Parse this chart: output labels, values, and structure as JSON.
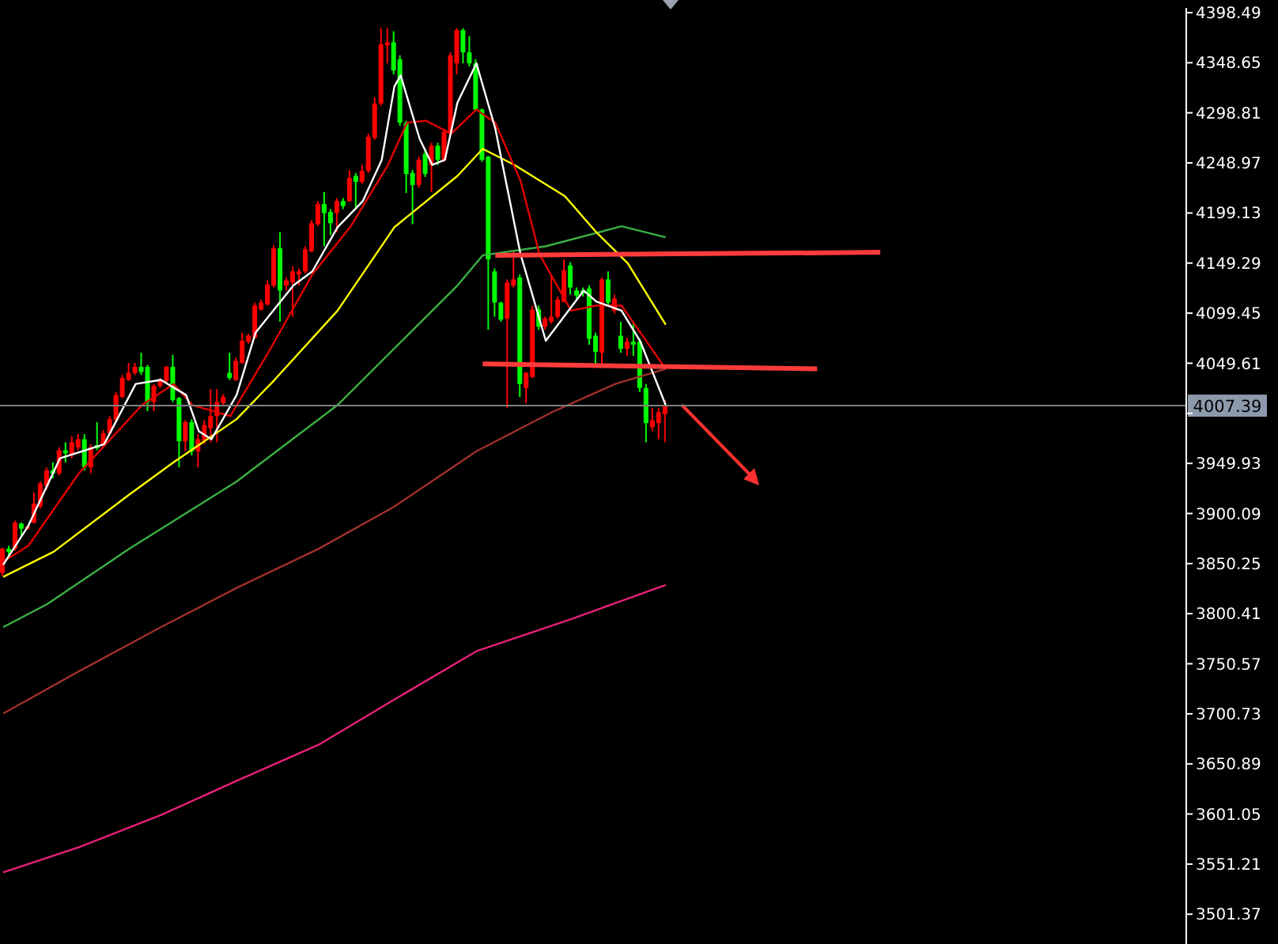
{
  "chart_data": {
    "type": "candlestick",
    "categories": [
      null,
      null,
      null,
      null,
      null,
      null,
      null,
      null,
      null,
      null,
      null,
      null,
      null,
      null,
      null,
      null,
      null,
      null,
      null,
      null,
      null,
      null,
      null,
      null,
      null,
      null,
      null,
      null,
      null,
      null,
      null,
      null,
      null,
      null,
      null,
      null,
      null,
      null,
      null,
      null,
      null,
      null,
      null,
      null,
      null,
      null,
      null,
      null,
      null,
      null,
      null,
      null,
      null,
      null,
      null,
      null,
      null,
      null,
      null,
      null,
      null,
      null,
      null,
      null,
      null,
      null,
      null,
      null,
      null,
      null,
      null,
      null,
      null,
      null,
      null,
      null,
      null,
      null,
      null,
      null,
      null,
      null,
      null,
      null,
      null,
      null,
      null,
      null,
      null,
      null,
      null,
      null,
      null,
      null,
      null,
      null,
      null,
      null,
      null,
      null,
      null,
      null,
      null,
      null,
      null,
      null,
      null,
      null,
      null,
      null,
      null,
      null,
      null,
      null,
      null,
      null,
      null,
      null,
      null,
      null,
      null,
      null,
      null,
      null,
      null,
      null,
      null,
      null,
      null,
      null,
      null,
      null,
      null,
      null,
      null,
      null,
      null,
      null,
      null,
      null,
      null,
      null,
      null,
      null,
      null,
      null,
      null,
      null,
      null,
      null,
      null,
      null,
      null,
      null,
      null,
      null,
      null,
      null,
      null,
      null,
      null,
      null,
      null,
      null,
      null,
      null,
      null,
      null,
      null,
      null,
      null,
      null,
      null,
      null,
      null,
      null,
      null,
      null,
      null,
      null,
      null,
      null,
      null,
      null,
      null,
      null,
      null,
      null
    ],
    "ohlc": [
      [
        3841,
        3866,
        3838,
        3865
      ],
      [
        3865,
        3868,
        3857,
        3862
      ],
      [
        3865,
        3893,
        3863,
        3891
      ],
      [
        3890,
        3891,
        3877,
        3885
      ],
      [
        3885,
        3888,
        3884,
        3887
      ],
      [
        3891,
        3921,
        3890,
        3910
      ],
      [
        3907,
        3932,
        3905,
        3930
      ],
      [
        3927,
        3946,
        3924,
        3943
      ],
      [
        3943,
        3951,
        3935,
        3940
      ],
      [
        3940,
        3966,
        3938,
        3963
      ],
      [
        3963,
        3971,
        3951,
        3960
      ],
      [
        3958,
        3977,
        3955,
        3971
      ],
      [
        3966,
        3979,
        3963,
        3974
      ],
      [
        3974,
        3979,
        3943,
        3946
      ],
      [
        3946,
        3969,
        3940,
        3966
      ],
      [
        3968,
        3991,
        3963,
        3965
      ],
      [
        3968,
        3983,
        3966,
        3980
      ],
      [
        3980,
        3997,
        3979,
        3994
      ],
      [
        3993,
        4021,
        3991,
        4018
      ],
      [
        4016,
        4038,
        4015,
        4035
      ],
      [
        4033,
        4050,
        4032,
        4040
      ],
      [
        4040,
        4050,
        4038,
        4046
      ],
      [
        4046,
        4060,
        4038,
        4041
      ],
      [
        4046,
        4048,
        4002,
        4011
      ],
      [
        4011,
        4029,
        4002,
        4027
      ],
      [
        4027,
        4035,
        4025,
        4033
      ],
      [
        4032,
        4047,
        4030,
        4046
      ],
      [
        4046,
        4058,
        4011,
        4013
      ],
      [
        4015,
        4016,
        3946,
        3972
      ],
      [
        3972,
        3993,
        3962,
        3991
      ],
      [
        3991,
        3994,
        3958,
        3962
      ],
      [
        3962,
        3979,
        3946,
        3974
      ],
      [
        3972,
        3993,
        3969,
        3988
      ],
      [
        3985,
        4024,
        3971,
        3997
      ],
      [
        3997,
        4024,
        3971,
        4011
      ],
      [
        4010,
        4019,
        4008,
        4016
      ],
      [
        4040,
        4060,
        4033,
        4035
      ],
      [
        4033,
        4055,
        4032,
        4052
      ],
      [
        4050,
        4080,
        4049,
        4072
      ],
      [
        4071,
        4079,
        4069,
        4077
      ],
      [
        4075,
        4110,
        4074,
        4107
      ],
      [
        4103,
        4113,
        4102,
        4110
      ],
      [
        4108,
        4132,
        4107,
        4128
      ],
      [
        4127,
        4167,
        4125,
        4164
      ],
      [
        4164,
        4180,
        4091,
        4122
      ],
      [
        4127,
        4135,
        4122,
        4132
      ],
      [
        4130,
        4146,
        4096,
        4141
      ],
      [
        4138,
        4144,
        4127,
        4141
      ],
      [
        4141,
        4166,
        4139,
        4163
      ],
      [
        4161,
        4192,
        4160,
        4189
      ],
      [
        4188,
        4211,
        4186,
        4208
      ],
      [
        4208,
        4220,
        4166,
        4199
      ],
      [
        4200,
        4203,
        4177,
        4189
      ],
      [
        4199,
        4214,
        4180,
        4211
      ],
      [
        4211,
        4214,
        4203,
        4206
      ],
      [
        4211,
        4242,
        4210,
        4234
      ],
      [
        4236,
        4239,
        4203,
        4230
      ],
      [
        4230,
        4247,
        4228,
        4241
      ],
      [
        4241,
        4278,
        4239,
        4275
      ],
      [
        4274,
        4314,
        4272,
        4308
      ],
      [
        4308,
        4383,
        4306,
        4367
      ],
      [
        4366,
        4383,
        4348,
        4369
      ],
      [
        4369,
        4380,
        4337,
        4341
      ],
      [
        4352,
        4356,
        4286,
        4289
      ],
      [
        4289,
        4291,
        4219,
        4238
      ],
      [
        4239,
        4242,
        4188,
        4227
      ],
      [
        4227,
        4255,
        4224,
        4252
      ],
      [
        4258,
        4263,
        4235,
        4238
      ],
      [
        4247,
        4269,
        4220,
        4266
      ],
      [
        4266,
        4269,
        4247,
        4252
      ],
      [
        4252,
        4283,
        4250,
        4280
      ],
      [
        4278,
        4359,
        4275,
        4356
      ],
      [
        4348,
        4383,
        4337,
        4381
      ],
      [
        4381,
        4383,
        4348,
        4359
      ],
      [
        4359,
        4375,
        4345,
        4348
      ],
      [
        4348,
        4352,
        4300,
        4302
      ],
      [
        4302,
        4303,
        4250,
        4252
      ],
      [
        4255,
        4256,
        4083,
        4153
      ],
      [
        4141,
        4144,
        4096,
        4110
      ],
      [
        4110,
        4111,
        4091,
        4093
      ],
      [
        4094,
        4133,
        4005,
        4130
      ],
      [
        4127,
        4161,
        4125,
        4133
      ],
      [
        4135,
        4138,
        4016,
        4029
      ],
      [
        4025,
        4041,
        4010,
        4040
      ],
      [
        4036,
        4107,
        4035,
        4103
      ],
      [
        4103,
        4107,
        4083,
        4086
      ],
      [
        4086,
        4096,
        4083,
        4094
      ],
      [
        4091,
        4138,
        4089,
        4096
      ],
      [
        4096,
        4116,
        4094,
        4113
      ],
      [
        4111,
        4153,
        4110,
        4142
      ],
      [
        4147,
        4150,
        4118,
        4125
      ],
      [
        4122,
        4125,
        4114,
        4117
      ],
      [
        4122,
        4125,
        4116,
        4119
      ],
      [
        4124,
        4127,
        4068,
        4074
      ],
      [
        4077,
        4080,
        4046,
        4061
      ],
      [
        4060,
        4135,
        4046,
        4133
      ],
      [
        4133,
        4141,
        4107,
        4110
      ],
      [
        4102,
        4118,
        4099,
        4114
      ],
      [
        4077,
        4091,
        4060,
        4064
      ],
      [
        4064,
        4075,
        4057,
        4071
      ],
      [
        4071,
        4091,
        4057,
        4068
      ],
      [
        4071,
        4074,
        4021,
        4025
      ],
      [
        4025,
        4029,
        3971,
        3990
      ],
      [
        3986,
        4005,
        3982,
        3993
      ],
      [
        3990,
        4005,
        3974,
        4001
      ],
      [
        3999,
        4013,
        3971,
        4008
      ],
      null,
      null,
      null,
      null,
      null,
      null,
      null,
      null,
      null,
      null,
      null,
      null,
      null,
      null,
      null,
      null,
      null,
      null,
      null,
      null,
      null,
      null,
      null,
      null,
      null,
      null,
      null,
      null,
      null,
      null,
      null,
      null,
      null,
      null,
      null,
      null,
      null,
      null,
      null,
      null,
      null,
      null,
      null,
      null,
      null,
      null,
      null,
      null,
      null,
      null,
      null,
      null,
      null,
      null,
      null,
      null,
      null,
      null,
      null,
      null,
      null,
      null,
      null,
      null,
      null,
      null,
      null,
      null,
      null,
      null,
      null,
      null,
      null,
      null,
      null,
      null,
      null,
      null,
      null,
      null,
      null,
      null
    ],
    "colors": [
      "#ff0000",
      "#00ff00",
      "#ff0000",
      "#00ff00",
      "#ff0000",
      "#ff0000",
      "#ff0000",
      "#ff0000",
      "#00ff00",
      "#ff0000",
      "#00ff00",
      "#ff0000",
      "#ff0000",
      "#00ff00",
      "#ff0000",
      "#00ff00",
      "#ff0000",
      "#ff0000",
      "#ff0000",
      "#ff0000",
      "#ff0000",
      "#ff0000",
      "#00ff00",
      "#00ff00",
      "#ff0000",
      "#ff0000",
      "#ff0000",
      "#00ff00",
      "#00ff00",
      "#ff0000",
      "#00ff00",
      "#ff0000",
      "#ff0000",
      "#ff0000",
      "#ff0000",
      "#ff0000",
      "#00ff00",
      "#ff0000",
      "#ff0000",
      "#ff0000",
      "#ff0000",
      "#ff0000",
      "#ff0000",
      "#ff0000",
      "#00ff00",
      "#ff0000",
      "#ff0000",
      "#ff0000",
      "#ff0000",
      "#ff0000",
      "#ff0000",
      "#00ff00",
      "#00ff00",
      "#ff0000",
      "#00ff00",
      "#ff0000",
      "#00ff00",
      "#ff0000",
      "#ff0000",
      "#ff0000",
      "#ff0000",
      "#ff0000",
      "#00ff00",
      "#00ff00",
      "#00ff00",
      "#00ff00",
      "#ff0000",
      "#00ff00",
      "#ff0000",
      "#00ff00",
      "#ff0000",
      "#ff0000",
      "#ff0000",
      "#00ff00",
      "#00ff00",
      "#00ff00",
      "#00ff00",
      "#00ff00",
      "#00ff00",
      "#00ff00",
      "#ff0000",
      "#ff0000",
      "#00ff00",
      "#ff0000",
      "#ff0000",
      "#00ff00",
      "#ff0000",
      "#ff0000",
      "#ff0000",
      "#ff0000",
      "#00ff00",
      "#00ff00",
      "#00ff00",
      "#00ff00",
      "#00ff00",
      "#ff0000",
      "#00ff00",
      "#ff0000",
      "#00ff00",
      "#ff0000",
      "#00ff00",
      "#00ff00",
      "#00ff00",
      "#ff0000",
      "#ff0000",
      "#ff0000",
      null,
      null,
      null,
      null,
      null,
      null,
      null,
      null,
      null,
      null,
      null,
      null,
      null,
      null,
      null,
      null,
      null,
      null,
      null,
      null,
      null,
      null,
      null,
      null,
      null,
      null,
      null,
      null,
      null,
      null,
      null,
      null,
      null,
      null,
      null,
      null,
      null,
      null,
      null,
      null,
      null,
      null,
      null,
      null,
      null,
      null,
      null,
      null,
      null,
      null,
      null,
      null,
      null,
      null,
      null,
      null,
      null,
      null,
      null,
      null,
      null,
      null,
      null,
      null,
      null,
      null,
      null,
      null,
      null,
      null,
      null,
      null,
      null,
      null,
      null,
      null,
      null,
      null,
      null,
      null,
      null,
      null
    ],
    "series": [
      {
        "type": "line",
        "color": "#e8207a",
        "values": [
          3543,
          null,
          null,
          null,
          null,
          null,
          null,
          null,
          null,
          null,
          null,
          null,
          3568,
          null,
          null,
          null,
          null,
          null,
          null,
          null,
          null,
          null,
          null,
          null,
          null,
          3600,
          null,
          null,
          null,
          null,
          null,
          null,
          null,
          null,
          null,
          null,
          null,
          3634,
          null,
          null,
          null,
          null,
          null,
          null,
          null,
          null,
          null,
          null,
          null,
          null,
          3670,
          null,
          null,
          null,
          null,
          null,
          null,
          null,
          null,
          null,
          null,
          null,
          3715,
          null,
          null,
          null,
          null,
          null,
          null,
          null,
          null,
          null,
          null,
          null,
          null,
          3763,
          null,
          null,
          null,
          null,
          null,
          null,
          null,
          null,
          null,
          null,
          null,
          null,
          null,
          null,
          3795,
          null,
          null,
          null,
          null,
          null,
          null,
          null,
          null,
          null,
          null,
          null,
          null,
          null,
          null,
          3829,
          null,
          null,
          null,
          null,
          null,
          null,
          null,
          null,
          null,
          null,
          null,
          null,
          null,
          null,
          null,
          null,
          null,
          null,
          null,
          null,
          null,
          null,
          null,
          null,
          null,
          null,
          null,
          null,
          null,
          null,
          null,
          null,
          null,
          null,
          null,
          null,
          null,
          null,
          null,
          null,
          null,
          null,
          null,
          null,
          null,
          null,
          null,
          null,
          null,
          null,
          null,
          null,
          null,
          null,
          null,
          null,
          null,
          null,
          null,
          null,
          null,
          null,
          null,
          null,
          null,
          null,
          null,
          null,
          null,
          null,
          null,
          null,
          null,
          null,
          null,
          null,
          null,
          null,
          null,
          null,
          null,
          null
        ]
      },
      {
        "type": "line",
        "color": "#a0302a",
        "values": [
          3701,
          null,
          null,
          null,
          null,
          null,
          null,
          null,
          null,
          null,
          null,
          null,
          3743,
          null,
          null,
          null,
          null,
          null,
          null,
          null,
          null,
          null,
          null,
          null,
          null,
          3787,
          null,
          null,
          null,
          null,
          null,
          null,
          null,
          null,
          null,
          null,
          null,
          3826,
          null,
          null,
          null,
          null,
          null,
          null,
          null,
          null,
          null,
          null,
          null,
          null,
          3865,
          null,
          null,
          null,
          null,
          null,
          null,
          null,
          null,
          null,
          null,
          null,
          3907,
          null,
          null,
          null,
          null,
          null,
          null,
          null,
          null,
          null,
          null,
          null,
          null,
          3962,
          null,
          null,
          null,
          null,
          null,
          null,
          null,
          null,
          null,
          null,
          null,
          4001,
          null,
          null,
          null,
          null,
          null,
          null,
          null,
          null,
          null,
          4029,
          null,
          null,
          null,
          null,
          null,
          null,
          null,
          4044,
          null,
          null,
          null,
          null,
          null,
          null,
          null,
          null,
          null,
          null,
          null,
          null,
          null,
          null,
          null,
          null,
          null,
          null,
          null,
          null,
          null,
          null,
          null,
          null,
          null,
          null,
          null,
          null,
          null,
          null,
          null,
          null,
          null,
          null,
          null,
          null,
          null,
          null,
          null,
          null,
          null,
          null,
          null,
          null,
          null,
          null,
          null,
          null,
          null,
          null,
          null,
          null,
          null,
          null,
          null,
          null,
          null,
          null,
          null,
          null,
          null,
          null,
          null,
          null,
          null,
          null,
          null,
          null,
          null,
          null,
          null,
          null,
          null,
          null,
          null,
          null,
          null,
          null,
          null,
          null,
          null,
          null
        ]
      },
      {
        "type": "line",
        "color": "#3cb043",
        "values": [
          3787,
          null,
          null,
          null,
          null,
          null,
          null,
          3810,
          null,
          null,
          null,
          null,
          null,
          null,
          null,
          null,
          null,
          null,
          null,
          null,
          3865,
          null,
          null,
          null,
          null,
          null,
          null,
          null,
          null,
          null,
          null,
          null,
          null,
          null,
          null,
          null,
          null,
          3932,
          null,
          null,
          null,
          null,
          null,
          null,
          null,
          null,
          null,
          null,
          null,
          null,
          null,
          null,
          null,
          4008,
          null,
          null,
          null,
          null,
          null,
          null,
          null,
          null,
          null,
          null,
          null,
          null,
          null,
          null,
          null,
          null,
          null,
          null,
          4127,
          null,
          null,
          null,
          4157,
          null,
          null,
          null,
          null,
          null,
          null,
          null,
          null,
          null,
          4166,
          null,
          null,
          null,
          null,
          null,
          null,
          null,
          null,
          null,
          null,
          null,
          4186,
          null,
          null,
          null,
          null,
          null,
          null,
          4175,
          null,
          null,
          null,
          null,
          null,
          null,
          null,
          null,
          null,
          null,
          null,
          null,
          null,
          null,
          null,
          null,
          null,
          null,
          null,
          null,
          null,
          null,
          null,
          null,
          null,
          null,
          null,
          null,
          null,
          null,
          null,
          null,
          null,
          null,
          null,
          null,
          null,
          null,
          null,
          null,
          null,
          null,
          null,
          null,
          null,
          null,
          null,
          null,
          null,
          null,
          null,
          null,
          null,
          null,
          null,
          null,
          null,
          null,
          null,
          null,
          null,
          null,
          null,
          null,
          null,
          null,
          null,
          null,
          null,
          null,
          null,
          null,
          null,
          null,
          null,
          null,
          null,
          null,
          null,
          null,
          null,
          null
        ]
      },
      {
        "type": "line",
        "color": "#ffff00",
        "values": [
          3837,
          null,
          null,
          null,
          null,
          null,
          null,
          null,
          3862,
          null,
          null,
          null,
          null,
          null,
          null,
          null,
          null,
          null,
          null,
          null,
          3919,
          null,
          null,
          null,
          null,
          null,
          null,
          3951,
          null,
          null,
          null,
          null,
          null,
          null,
          null,
          null,
          null,
          3994,
          null,
          null,
          null,
          null,
          null,
          4033,
          null,
          null,
          null,
          null,
          null,
          null,
          null,
          null,
          null,
          4102,
          null,
          null,
          null,
          null,
          null,
          null,
          null,
          null,
          4185,
          null,
          null,
          null,
          null,
          null,
          null,
          null,
          null,
          null,
          4236,
          null,
          null,
          null,
          4263,
          null,
          null,
          null,
          null,
          4247,
          null,
          null,
          null,
          null,
          null,
          null,
          null,
          4216,
          null,
          null,
          null,
          null,
          4180,
          null,
          null,
          null,
          null,
          4149,
          null,
          null,
          null,
          null,
          null,
          4088,
          null,
          null,
          null,
          null,
          null,
          null,
          null,
          null,
          null,
          null,
          null,
          null,
          null,
          null,
          null,
          null,
          null,
          null,
          null,
          null,
          null,
          null,
          null,
          null,
          null,
          null,
          null,
          null,
          null,
          null,
          null,
          null,
          null,
          null,
          null,
          null,
          null,
          null,
          null,
          null,
          null,
          null,
          null,
          null,
          null,
          null,
          null,
          null,
          null,
          null,
          null,
          null,
          null,
          null,
          null,
          null,
          null,
          null,
          null,
          null,
          null,
          null,
          null,
          null,
          null,
          null,
          null,
          null,
          null,
          null,
          null,
          null,
          null,
          null,
          null,
          null,
          null,
          null,
          null,
          null,
          null,
          null
        ]
      },
      {
        "type": "line",
        "color": "#e00000",
        "values": [
          3852,
          null,
          null,
          null,
          3868,
          null,
          null,
          null,
          null,
          null,
          null,
          null,
          3940,
          null,
          null,
          null,
          null,
          null,
          null,
          null,
          null,
          null,
          4008,
          null,
          null,
          null,
          null,
          4029,
          null,
          null,
          4008,
          null,
          null,
          null,
          null,
          null,
          3997,
          null,
          null,
          null,
          null,
          null,
          4060,
          null,
          null,
          null,
          null,
          null,
          null,
          4138,
          null,
          null,
          null,
          null,
          null,
          4185,
          null,
          null,
          null,
          null,
          null,
          4247,
          null,
          null,
          4289,
          null,
          null,
          4291,
          null,
          null,
          null,
          4278,
          null,
          null,
          null,
          4302,
          null,
          null,
          4289,
          null,
          null,
          null,
          4231,
          null,
          null,
          4158,
          null,
          null,
          null,
          null,
          4102,
          null,
          null,
          null,
          4107,
          null,
          null,
          null,
          4107,
          null,
          null,
          4080,
          null,
          null,
          null,
          4044,
          null,
          null,
          null,
          null,
          null,
          null,
          null,
          null,
          null,
          null,
          null,
          null,
          null,
          null,
          null,
          null,
          null,
          null,
          null,
          null,
          null,
          null,
          null,
          null,
          null,
          null,
          null,
          null,
          null,
          null,
          null,
          null,
          null,
          null,
          null,
          null,
          null,
          null,
          null,
          null,
          null,
          null,
          null,
          null,
          null,
          null,
          null,
          null,
          null,
          null,
          null,
          null,
          null,
          null,
          null,
          null,
          null,
          null,
          null,
          null,
          null,
          null,
          null,
          null,
          null,
          null,
          null,
          null,
          null,
          null,
          null,
          null,
          null,
          null,
          null,
          null,
          null,
          null,
          null,
          null,
          null,
          null
        ]
      },
      {
        "type": "line",
        "color": "#ffffff",
        "values": [
          3849,
          null,
          null,
          null,
          3888,
          null,
          null,
          null,
          null,
          3955,
          null,
          null,
          null,
          3963,
          null,
          null,
          3969,
          null,
          null,
          null,
          null,
          4029,
          null,
          null,
          null,
          4033,
          null,
          null,
          null,
          4018,
          null,
          3982,
          null,
          3974,
          null,
          null,
          null,
          4018,
          null,
          null,
          4080,
          null,
          null,
          null,
          null,
          null,
          4127,
          null,
          null,
          4141,
          null,
          null,
          null,
          4185,
          null,
          null,
          null,
          4211,
          null,
          null,
          4252,
          null,
          4325,
          4336,
          null,
          null,
          4273,
          null,
          4247,
          null,
          4252,
          null,
          4309,
          null,
          null,
          4348,
          null,
          null,
          4283,
          null,
          null,
          null,
          4158,
          null,
          null,
          null,
          4072,
          null,
          null,
          null,
          null,
          null,
          4122,
          null,
          4111,
          null,
          null,
          null,
          4102,
          null,
          null,
          4071,
          null,
          null,
          null,
          4008,
          null,
          null,
          null,
          null,
          null,
          null,
          null,
          null,
          null,
          null,
          null,
          null,
          null,
          null,
          null,
          null,
          null,
          null,
          null,
          null,
          null,
          null,
          null,
          null,
          null,
          null,
          null,
          null,
          null,
          null,
          null,
          null,
          null,
          null,
          null,
          null,
          null,
          null,
          null,
          null,
          null,
          null,
          null,
          null,
          null,
          null,
          null,
          null,
          null,
          null,
          null,
          null,
          null,
          null,
          null,
          null,
          null,
          null,
          null,
          null,
          null,
          null,
          null,
          null,
          null,
          null,
          null,
          null,
          null,
          null,
          null,
          null,
          null,
          null,
          null,
          null,
          null,
          null,
          null,
          null,
          null,
          null
        ]
      },
      {
        "type": "line",
        "color": "#ff3b3b",
        "values": [
          null,
          null,
          null,
          null,
          null,
          null,
          null,
          null,
          null,
          null,
          null,
          null,
          null,
          null,
          null,
          null,
          null,
          null,
          null,
          null,
          null,
          null,
          null,
          null,
          null,
          null,
          null,
          null,
          null,
          null,
          null,
          null,
          null,
          null,
          null,
          null,
          null,
          null,
          null,
          null,
          null,
          null,
          null,
          null,
          null,
          null,
          null,
          null,
          null,
          null,
          null,
          null,
          null,
          null,
          null,
          null,
          null,
          null,
          null,
          null,
          null,
          null,
          null,
          null,
          null,
          null,
          null,
          null,
          null,
          null,
          null,
          null,
          null,
          null,
          null,
          null,
          null,
          null,
          4157,
          null,
          null,
          null,
          null,
          null,
          null,
          null,
          null,
          null,
          null,
          null,
          null,
          null,
          null,
          null,
          null,
          null,
          null,
          null,
          null,
          null,
          null,
          null,
          null,
          null,
          null,
          null,
          null,
          null,
          null,
          null,
          null,
          null,
          null,
          null,
          null,
          null,
          null,
          null,
          null,
          null,
          null,
          null,
          null,
          null,
          null,
          null,
          null,
          null,
          null,
          null,
          null,
          null,
          null,
          null,
          null,
          null,
          null,
          null,
          null,
          4160,
          null,
          null,
          null,
          null,
          null,
          null,
          null,
          null,
          null,
          null,
          null,
          null,
          null,
          null,
          null,
          null,
          null,
          null,
          null,
          null,
          null,
          null,
          null,
          null,
          null,
          null,
          null,
          null,
          null,
          null,
          null,
          null,
          null,
          null,
          null,
          null,
          null,
          null,
          null,
          null,
          null,
          null,
          null,
          null,
          null,
          null,
          null,
          null
        ]
      },
      {
        "type": "line",
        "color": "#ff3b3b",
        "values": [
          null,
          null,
          null,
          null,
          null,
          null,
          null,
          null,
          null,
          null,
          null,
          null,
          null,
          null,
          null,
          null,
          null,
          null,
          null,
          null,
          null,
          null,
          null,
          null,
          null,
          null,
          null,
          null,
          null,
          null,
          null,
          null,
          null,
          null,
          null,
          null,
          null,
          null,
          null,
          null,
          null,
          null,
          null,
          null,
          null,
          null,
          null,
          null,
          null,
          null,
          null,
          null,
          null,
          null,
          null,
          null,
          null,
          null,
          null,
          null,
          null,
          null,
          null,
          null,
          null,
          null,
          null,
          null,
          null,
          null,
          null,
          null,
          null,
          null,
          null,
          null,
          4049,
          null,
          null,
          null,
          null,
          null,
          null,
          null,
          null,
          null,
          null,
          null,
          null,
          null,
          null,
          null,
          null,
          null,
          null,
          null,
          null,
          null,
          null,
          null,
          null,
          null,
          null,
          null,
          null,
          null,
          null,
          null,
          null,
          null,
          null,
          null,
          null,
          null,
          null,
          null,
          null,
          null,
          null,
          null,
          null,
          null,
          null,
          null,
          null,
          null,
          null,
          null,
          null,
          4044,
          null,
          null,
          null,
          null,
          null,
          null,
          null,
          null,
          null,
          null,
          null,
          null,
          null,
          null,
          null,
          null,
          null,
          null,
          null,
          null,
          null,
          null,
          null,
          null,
          null,
          null,
          null,
          null,
          null,
          null,
          null,
          null,
          null,
          null,
          null,
          null,
          null,
          null,
          null,
          null,
          null,
          null,
          null,
          null,
          null,
          null,
          null,
          null,
          null,
          null,
          null,
          null,
          null,
          null,
          null,
          null,
          null,
          null
        ]
      }
    ],
    "ylim": [
      3471.7,
      4403.2
    ],
    "yticks": [
      4398.49,
      4348.65,
      4298.81,
      4248.97,
      4199.13,
      4149.29,
      4099.45,
      4049.61,
      {
        "value": 3999.77,
        "label": null
      },
      3949.93,
      3900.09,
      3850.25,
      3800.41,
      3750.57,
      3700.73,
      3650.89,
      3601.05,
      3551.21,
      3501.37
    ],
    "ref_lines": [
      {
        "axis": "y",
        "value": 4007.39,
        "label": "4007.39",
        "color": "#808080"
      }
    ],
    "tick_labels": "y",
    "marker": "none"
  }
}
